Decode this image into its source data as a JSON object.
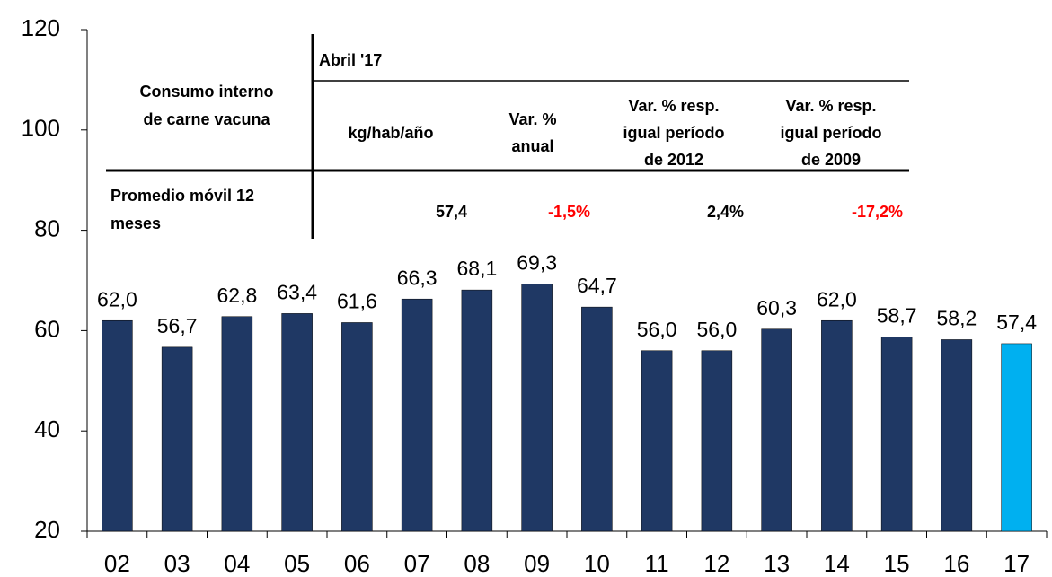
{
  "chart_data": {
    "type": "bar",
    "categories": [
      "02",
      "03",
      "04",
      "05",
      "06",
      "07",
      "08",
      "09",
      "10",
      "11",
      "12",
      "13",
      "14",
      "15",
      "16",
      "17"
    ],
    "values": [
      62.0,
      56.7,
      62.8,
      63.4,
      61.6,
      66.3,
      68.1,
      69.3,
      64.7,
      56.0,
      56.0,
      60.3,
      62.0,
      58.7,
      58.2,
      57.4
    ],
    "value_labels": [
      "62,0",
      "56,7",
      "62,8",
      "63,4",
      "61,6",
      "66,3",
      "68,1",
      "69,3",
      "64,7",
      "56,0",
      "56,0",
      "60,3",
      "62,0",
      "58,7",
      "58,2",
      "57,4"
    ],
    "colors": [
      "#1f3864",
      "#1f3864",
      "#1f3864",
      "#1f3864",
      "#1f3864",
      "#1f3864",
      "#1f3864",
      "#1f3864",
      "#1f3864",
      "#1f3864",
      "#1f3864",
      "#1f3864",
      "#1f3864",
      "#1f3864",
      "#1f3864",
      "#00b0f0"
    ],
    "ylim": [
      20,
      120
    ],
    "yticks": [
      20,
      40,
      60,
      80,
      100,
      120
    ],
    "table": {
      "period": "Abril '17",
      "row_header": [
        "Consumo interno",
        "de carne vacuna"
      ],
      "columns": [
        [
          "kg/hab/año"
        ],
        [
          "Var. %",
          "anual"
        ],
        [
          "Var. % resp.",
          "igual período",
          "de 2012"
        ],
        [
          "Var. % resp.",
          "igual período",
          "de 2009"
        ]
      ],
      "row_label": [
        "Promedio móvil 12",
        "meses"
      ],
      "row_values": [
        "57,4",
        "-1,5%",
        "2,4%",
        "-17,2%"
      ],
      "row_colors": [
        "#000000",
        "#ff0000",
        "#000000",
        "#ff0000"
      ]
    }
  }
}
